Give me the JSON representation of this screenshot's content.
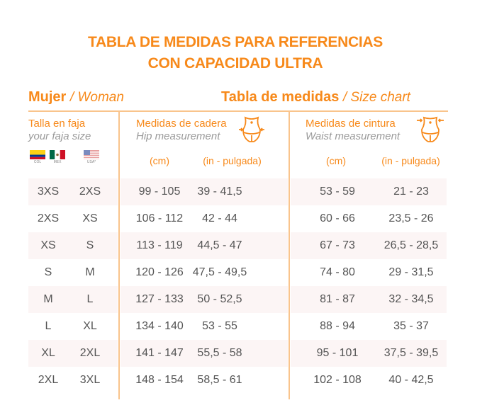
{
  "title": {
    "line1": "TABLA DE MEDIDAS PARA REFERENCIAS",
    "line2": "CON CAPACIDAD ULTRA"
  },
  "header": {
    "left_bold": "Mujer",
    "left_italic": "/ Woman",
    "right_bold": "Tabla de medidas",
    "right_italic": "/ Size chart"
  },
  "columns": {
    "size": {
      "es": "Talla en faja",
      "en": "your faja size",
      "flags": [
        {
          "icon": "flag-colombia-icon",
          "label": "COL"
        },
        {
          "icon": "flag-mexico-icon",
          "label": "MEX"
        },
        {
          "icon": "flag-usa-icon",
          "label": "USA*"
        }
      ]
    },
    "hip": {
      "es": "Medidas de cadera",
      "en": "Hip measurement",
      "icon": "hip-measure-icon",
      "unit_cm": "(cm)",
      "unit_in": "(in - pulgada)"
    },
    "waist": {
      "es": "Medidas de cintura",
      "en": "Waist measurement",
      "icon": "waist-measure-icon",
      "unit_cm": "(cm)",
      "unit_in": "(in - pulgada)"
    }
  },
  "colors": {
    "accent": "#f7891a",
    "line": "#f9c48c",
    "row_shade": "#fcf5f5",
    "text": "#555555"
  },
  "rows": [
    [
      "3XS",
      "2XS",
      "99 - 105",
      "39 - 41,5",
      "53 - 59",
      "21 - 23"
    ],
    [
      "2XS",
      "XS",
      "106 - 112",
      "42 - 44",
      "60 - 66",
      "23,5 - 26"
    ],
    [
      "XS",
      "S",
      "113 - 119",
      "44,5 - 47",
      "67 - 73",
      "26,5 - 28,5"
    ],
    [
      "S",
      "M",
      "120 - 126",
      "47,5 - 49,5",
      "74 - 80",
      "29 - 31,5"
    ],
    [
      "M",
      "L",
      "127 - 133",
      "50 - 52,5",
      "81 - 87",
      "32 - 34,5"
    ],
    [
      "L",
      "XL",
      "134 - 140",
      "53 - 55",
      "88 - 94",
      "35 - 37"
    ],
    [
      "XL",
      "2XL",
      "141 - 147",
      "55,5 - 58",
      "95 - 101",
      "37,5 - 39,5"
    ],
    [
      "2XL",
      "3XL",
      "148 - 154",
      "58,5 - 61",
      "102 - 108",
      "40 - 42,5"
    ]
  ]
}
